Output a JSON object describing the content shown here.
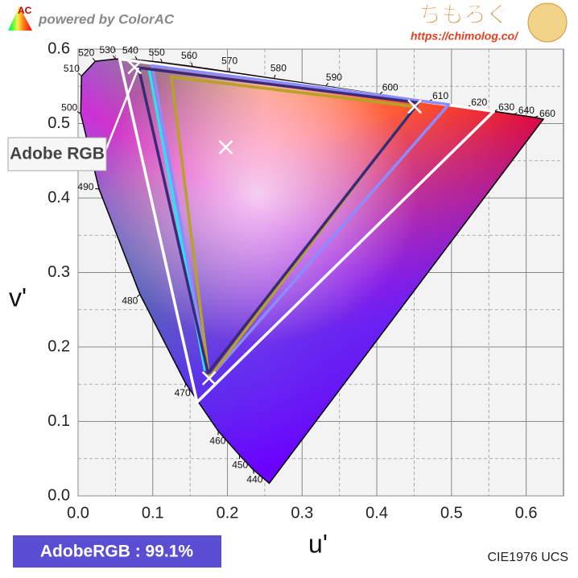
{
  "header": {
    "logo": "AC",
    "powered": "powered by ColorAC",
    "site_name": "ちもろぐ",
    "site_url": "https://chimolog.co/"
  },
  "chart_data": {
    "type": "chromaticity",
    "xlabel": "u'",
    "ylabel": "v'",
    "callout": "Adobe RGB",
    "coverage_label": "AdobeRGB : 99.1%",
    "diagram_label": "CIE1976 UCS",
    "xlim": [
      0,
      0.65
    ],
    "ylim": [
      0,
      0.6
    ],
    "xticks": [
      {
        "value": 0,
        "label": "0.0"
      },
      0.1,
      0.2,
      0.3,
      0.4,
      0.5,
      0.6
    ],
    "yticks": [
      {
        "value": 0,
        "label": "0.0"
      },
      0.1,
      0.2,
      0.3,
      0.4,
      0.5,
      0.6
    ],
    "xminor": [
      0.05,
      0.15,
      0.25,
      0.35,
      0.45,
      0.55
    ],
    "yminor": [
      0.05,
      0.15,
      0.25,
      0.35,
      0.45,
      0.55
    ],
    "grid": true,
    "locus": {
      "wavelengths": [
        null,
        440,
        450,
        460,
        470,
        480,
        490,
        500,
        510,
        520,
        530,
        540,
        550,
        560,
        570,
        580,
        590,
        600,
        610,
        620,
        630,
        640,
        660,
        null
      ],
      "u": [
        0.256,
        0.2347,
        0.216,
        0.1877,
        0.1441,
        0.0828,
        0.0282,
        0.0035,
        0.0046,
        0.0231,
        0.0501,
        0.0792,
        0.1127,
        0.1531,
        0.2026,
        0.2623,
        0.3315,
        0.4035,
        0.4692,
        0.5203,
        0.5565,
        0.583,
        0.6109,
        0.623
      ],
      "v": [
        0.017,
        0.035,
        0.0549,
        0.0871,
        0.151,
        0.2708,
        0.4117,
        0.5131,
        0.5638,
        0.5837,
        0.5868,
        0.5856,
        0.5821,
        0.5766,
        0.5694,
        0.5604,
        0.5501,
        0.5393,
        0.5296,
        0.5219,
        0.5165,
        0.5125,
        0.5084,
        0.506
      ]
    },
    "series": [
      {
        "color": "#ffffff",
        "closed": true,
        "x": [
          0.0556,
          0.5566,
          0.1593
        ],
        "y": [
          0.5868,
          0.5165,
          0.1258
        ]
      },
      {
        "color": "#8a8cff",
        "closed": true,
        "x": [
          0.0991,
          0.4964,
          0.1754
        ],
        "y": [
          0.5777,
          0.5256,
          0.1579
        ]
      },
      {
        "color": "#b7a226",
        "closed": true,
        "x": [
          0.125,
          0.4507,
          0.1754
        ],
        "y": [
          0.5625,
          0.5229,
          0.1579
        ]
      },
      {
        "color": "#2ee0f0",
        "closed": false,
        "x": [
          0.095,
          0.17
        ],
        "y": [
          0.573,
          0.168
        ]
      },
      {
        "color": "#3a2a78",
        "closed": true,
        "x": [
          0.081,
          0.456,
          0.174
        ],
        "y": [
          0.575,
          0.528,
          0.165
        ]
      },
      {
        "color": "#ffffff",
        "marker": "x",
        "x": [
          0.0757,
          0.4507,
          0.1754
        ],
        "y": [
          0.5757,
          0.5229,
          0.1579
        ]
      },
      {
        "color": "#ffffff",
        "marker": "x",
        "x": [
          0.1978
        ],
        "y": [
          0.4683
        ]
      }
    ]
  }
}
